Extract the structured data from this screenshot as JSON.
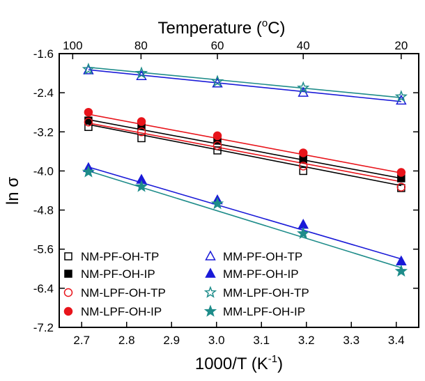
{
  "chart_data": {
    "type": "scatter",
    "title": "",
    "xlabel": "1000/T (K",
    "xlabel_sup": "-1",
    "xlabel_close": ")",
    "ylabel": "ln σ",
    "top_label": "Temperature (",
    "top_label_sup": "o",
    "top_label_close": "C)",
    "xlim": [
      2.65,
      3.45
    ],
    "ylim": [
      -7.2,
      -1.6
    ],
    "xticks": [
      2.7,
      2.8,
      2.9,
      3.0,
      3.1,
      3.2,
      3.3,
      3.4
    ],
    "xtick_labels": [
      "2.7",
      "2.8",
      "2.9",
      "3.0",
      "3.1",
      "3.2",
      "3.3",
      "3.4"
    ],
    "yticks": [
      -1.6,
      -2.4,
      -3.2,
      -4.0,
      -4.8,
      -5.6,
      -6.4,
      -7.2
    ],
    "ytick_labels": [
      "-1.6",
      "-2.4",
      "-3.2",
      "-4.0",
      "-4.8",
      "-5.6",
      "-6.4",
      "-7.2"
    ],
    "top_ticks": [
      {
        "label": "100",
        "x": 2.68
      },
      {
        "label": "80",
        "x": 2.832
      },
      {
        "label": "60",
        "x": 3.002
      },
      {
        "label": "40",
        "x": 3.193
      },
      {
        "label": "20",
        "x": 3.411
      }
    ],
    "x": [
      2.715,
      2.833,
      3.002,
      3.193,
      3.411
    ],
    "legend_position": "bottom-left",
    "series": [
      {
        "name": "NM-PF-OH-TP",
        "marker": "square-open",
        "color": "#000000",
        "values": [
          -3.1,
          -3.33,
          -3.58,
          -4.0,
          -4.35
        ],
        "fit": [
          -3.05,
          -4.3
        ]
      },
      {
        "name": "NM-PF-OH-IP",
        "marker": "square-filled",
        "color": "#000000",
        "values": [
          -2.97,
          -3.08,
          -3.38,
          -3.76,
          -4.15
        ],
        "fit": [
          -2.95,
          -4.15
        ]
      },
      {
        "name": "NM-LPF-OH-TP",
        "marker": "circle-open",
        "color": "#e8141b",
        "values": [
          -3.0,
          -3.2,
          -3.48,
          -3.9,
          -4.33
        ],
        "fit": [
          -3.02,
          -4.22
        ]
      },
      {
        "name": "NM-LPF-OH-IP",
        "marker": "circle-filled",
        "color": "#e8141b",
        "values": [
          -2.8,
          -2.99,
          -3.28,
          -3.63,
          -4.03
        ],
        "fit": [
          -2.84,
          -4.04
        ]
      },
      {
        "name": "MM-PF-OH-TP",
        "marker": "triangle-open",
        "color": "#1a1ad8",
        "values": [
          -1.94,
          -2.06,
          -2.21,
          -2.4,
          -2.56
        ],
        "fit": [
          -1.93,
          -2.58
        ]
      },
      {
        "name": "MM-PF-OH-IP",
        "marker": "triangle-filled",
        "color": "#1a1ad8",
        "values": [
          -3.94,
          -4.18,
          -4.6,
          -5.1,
          -5.85
        ],
        "fit": [
          -3.92,
          -5.8
        ]
      },
      {
        "name": "MM-LPF-OH-TP",
        "marker": "star-open",
        "color": "#1e8c8a",
        "values": [
          -1.92,
          -2.0,
          -2.17,
          -2.3,
          -2.48
        ],
        "fit": [
          -1.88,
          -2.5
        ]
      },
      {
        "name": "MM-LPF-OH-IP",
        "marker": "star-filled",
        "color": "#1e8c8a",
        "values": [
          -4.02,
          -4.32,
          -4.67,
          -5.28,
          -6.05
        ],
        "fit": [
          -4.0,
          -5.98
        ]
      }
    ]
  }
}
